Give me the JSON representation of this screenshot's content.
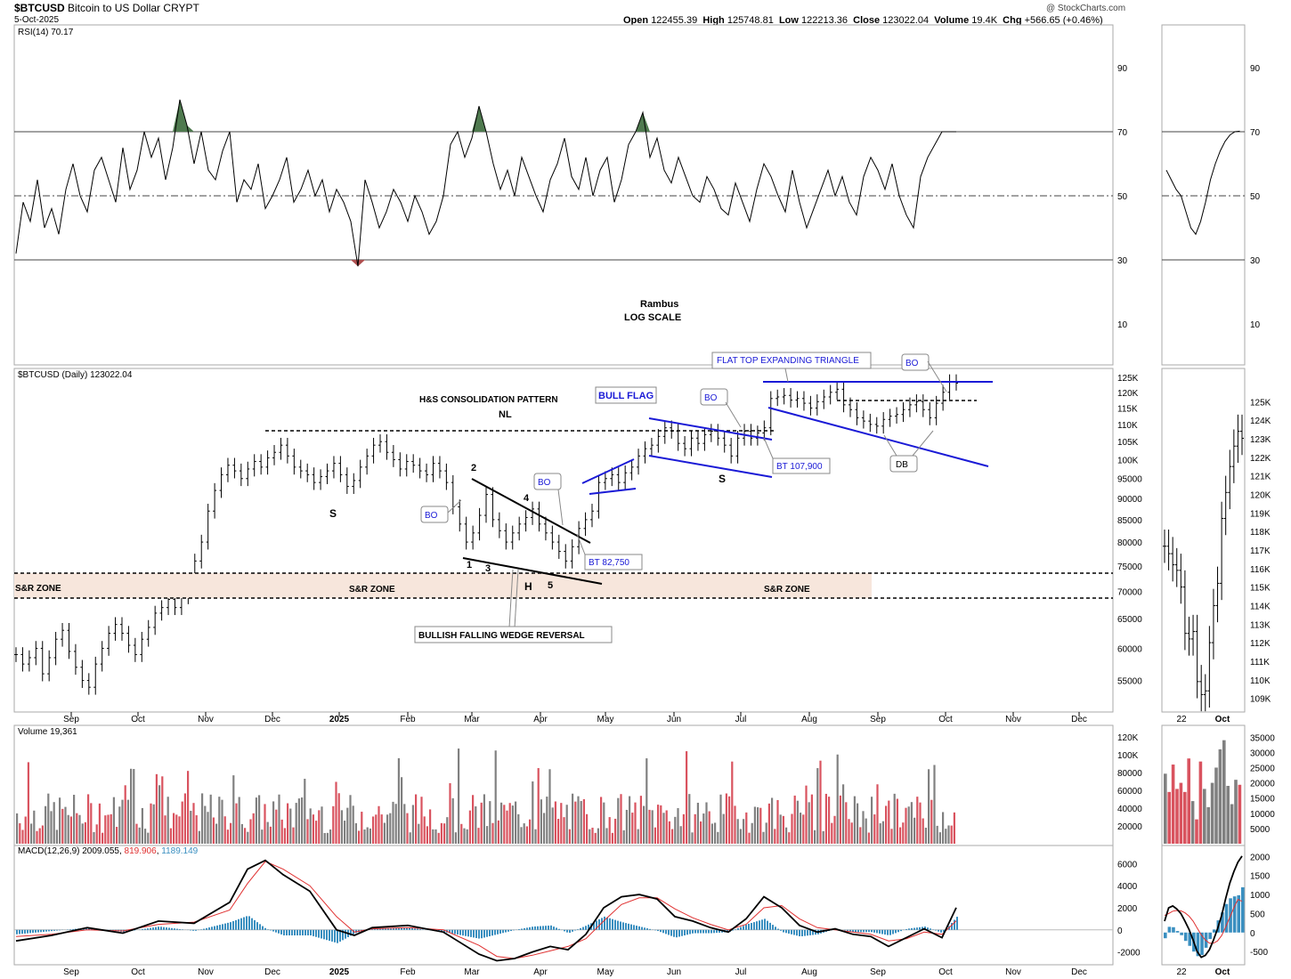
{
  "header": {
    "symbol": "$BTCUSD",
    "name": "Bitcoin to US Dollar",
    "exchange": "CRYPT",
    "date": "5-Oct-2025",
    "watermark": "@ StockCharts.com",
    "ohlc": {
      "open_label": "Open",
      "open": "122455.39",
      "high_label": "High",
      "high": "125748.81",
      "low_label": "Low",
      "low": "122213.36",
      "close_label": "Close",
      "close": "123022.04",
      "volume_label": "Volume",
      "volume": "19.4K",
      "chg_label": "Chg",
      "chg": "+566.65 (+0.46%)"
    }
  },
  "colors": {
    "up": "#000000",
    "down_volume": "#d9535f",
    "up_volume": "#808080",
    "trendline_blue": "#1a1ad6",
    "sr_zone": "#f7e6dc",
    "rsi_overbought_fill": "#4f7a4f",
    "rsi_oversold_fill": "#b05050",
    "macd_signal": "#e03030",
    "macd_hist": "#3a8fc0"
  },
  "chart_data": [
    {
      "panel": "rsi",
      "type": "line",
      "label": "RSI(14) 70.17",
      "ylim": [
        0,
        100
      ],
      "ticks": [
        "90",
        "70",
        "50",
        "30",
        "10"
      ],
      "tick_values": [
        90,
        70,
        50,
        30,
        10
      ],
      "reference_lines": [
        70,
        50,
        30
      ],
      "x": [
        0,
        8,
        16,
        24,
        32,
        40,
        48,
        56,
        64,
        72,
        80,
        88,
        96,
        104,
        112,
        120,
        128,
        136,
        144,
        152,
        160,
        168,
        176,
        184,
        192,
        200,
        208,
        216,
        224,
        232,
        240,
        248,
        256,
        264,
        272,
        280,
        288,
        296,
        304,
        312,
        320,
        328,
        336,
        344,
        352,
        360,
        368,
        376,
        384,
        392,
        400,
        408,
        416,
        424,
        432,
        440,
        448,
        456,
        464,
        472,
        480,
        488,
        496,
        504,
        512,
        520,
        528,
        536,
        544,
        552,
        560,
        568,
        576,
        584,
        592,
        600,
        608,
        616,
        624,
        632,
        640,
        648,
        656,
        664,
        672,
        680,
        688,
        696,
        704,
        712,
        720,
        728,
        736,
        744,
        752,
        760,
        768,
        776,
        784,
        792,
        800,
        808,
        816,
        824,
        832,
        840,
        848,
        856,
        864,
        872,
        880,
        888,
        896,
        904,
        912,
        920,
        928,
        936,
        944,
        952,
        960,
        968,
        976,
        984,
        992,
        1000,
        1008,
        1016,
        1024,
        1032,
        1040,
        1048,
        1056
      ],
      "values": [
        32,
        48,
        42,
        55,
        40,
        46,
        38,
        52,
        60,
        50,
        45,
        58,
        62,
        55,
        48,
        65,
        52,
        58,
        70,
        62,
        68,
        55,
        65,
        80,
        72,
        60,
        70,
        58,
        55,
        64,
        70,
        48,
        55,
        52,
        60,
        46,
        50,
        55,
        62,
        48,
        52,
        58,
        50,
        55,
        45,
        52,
        48,
        42,
        28,
        55,
        48,
        40,
        45,
        52,
        48,
        42,
        50,
        45,
        38,
        42,
        50,
        66,
        70,
        62,
        68,
        78,
        70,
        60,
        52,
        58,
        50,
        62,
        56,
        50,
        45,
        55,
        60,
        68,
        56,
        52,
        62,
        50,
        58,
        62,
        48,
        55,
        66,
        70,
        76,
        62,
        68,
        58,
        54,
        62,
        56,
        50,
        48,
        56,
        52,
        46,
        44,
        54,
        48,
        42,
        52,
        60,
        56,
        50,
        45,
        58,
        48,
        40,
        46,
        52,
        58,
        50,
        56,
        48,
        44,
        56,
        62,
        58,
        52,
        60,
        50,
        44,
        40,
        56,
        62,
        66,
        70,
        70,
        70
      ],
      "marker_last": 70.17
    },
    {
      "panel": "price",
      "type": "ohlc",
      "label": "$BTCUSD (Daily) 123022.04",
      "scale": "log",
      "ylim": [
        50500,
        128000
      ],
      "ticks": [
        "125K",
        "120K",
        "115K",
        "110K",
        "105K",
        "100K",
        "95000",
        "90000",
        "85000",
        "80000",
        "75000",
        "70000",
        "65000",
        "60000",
        "55000"
      ],
      "tick_values": [
        125000,
        120000,
        115000,
        110000,
        105000,
        100000,
        95000,
        90000,
        85000,
        80000,
        75000,
        70000,
        65000,
        60000,
        55000
      ],
      "x_ticks": [
        "Sep",
        "Oct",
        "Nov",
        "Dec",
        "2025",
        "Feb",
        "Mar",
        "Apr",
        "May",
        "Jun",
        "Jul",
        "Aug",
        "Sep",
        "Oct",
        "Nov",
        "Dec"
      ],
      "closes": [
        59000,
        57500,
        58500,
        60000,
        56000,
        58500,
        61500,
        63000,
        59500,
        57000,
        55000,
        54000,
        57500,
        60000,
        62500,
        64000,
        62500,
        60500,
        59000,
        61500,
        63500,
        66000,
        67000,
        68500,
        67000,
        69000,
        72000,
        76000,
        80000,
        87000,
        92000,
        96000,
        98500,
        97000,
        95000,
        97500,
        99500,
        98000,
        100500,
        102000,
        104000,
        101000,
        98000,
        97000,
        96000,
        94000,
        95500,
        97000,
        99000,
        96000,
        93000,
        94500,
        98000,
        101000,
        104000,
        105000,
        102000,
        100000,
        97500,
        99500,
        98500,
        97000,
        96000,
        99000,
        97000,
        94000,
        88000,
        84000,
        80000,
        82000,
        86000,
        91000,
        85000,
        82500,
        80000,
        82000,
        84000,
        85500,
        87500,
        84000,
        82000,
        80000,
        78000,
        76000,
        79000,
        83000,
        85000,
        87000,
        94000,
        95000,
        96000,
        94000,
        96500,
        98000,
        101000,
        103000,
        104000,
        106500,
        109000,
        108000,
        104500,
        103000,
        106000,
        104500,
        107000,
        108000,
        106000,
        104000,
        101000,
        106000,
        108000,
        106000,
        107500,
        109000,
        118000,
        118500,
        119000,
        117500,
        118000,
        116500,
        115000,
        117000,
        118500,
        120000,
        121000,
        116000,
        114500,
        112000,
        111000,
        110000,
        109500,
        111500,
        112500,
        113000,
        114500,
        116000,
        117000,
        114500,
        112000,
        116500,
        120000,
        123500,
        123022
      ],
      "last_close": 123022.04
    },
    {
      "panel": "volume",
      "type": "bar",
      "label": "Volume 19,361",
      "ylim": [
        0,
        130000
      ],
      "ticks": [
        "120K",
        "100K",
        "80000",
        "60000",
        "40000",
        "20000"
      ],
      "tick_values": [
        120000,
        100000,
        80000,
        60000,
        40000,
        20000
      ],
      "last_value": 19361
    },
    {
      "panel": "macd",
      "type": "line",
      "label": "MACD(12,26,9)",
      "values_text": [
        "2009.055",
        "819.906",
        "1189.149"
      ],
      "ylim": [
        -3000,
        7000
      ],
      "ticks": [
        "6000",
        "4000",
        "2000",
        "0",
        "-2000"
      ],
      "tick_values": [
        6000,
        4000,
        2000,
        0,
        -2000
      ],
      "x": [
        0,
        40,
        80,
        120,
        160,
        200,
        240,
        260,
        280,
        300,
        330,
        360,
        380,
        400,
        440,
        480,
        520,
        540,
        560,
        580,
        600,
        620,
        640,
        660,
        680,
        700,
        720,
        740,
        760,
        780,
        800,
        820,
        840,
        860,
        880,
        900,
        920,
        940,
        960,
        980,
        1000,
        1020,
        1040,
        1056
      ],
      "macd": [
        -1000,
        -500,
        200,
        -300,
        800,
        600,
        2500,
        5500,
        6300,
        5000,
        3500,
        0,
        -500,
        200,
        400,
        -200,
        -2200,
        -2800,
        -2600,
        -2000,
        -1500,
        -1800,
        -400,
        2000,
        3000,
        3200,
        2800,
        1200,
        800,
        200,
        -200,
        1000,
        3000,
        2000,
        400,
        -200,
        100,
        -400,
        -600,
        -1500,
        -700,
        100,
        -700,
        2009
      ],
      "signal": [
        -600,
        -400,
        0,
        -100,
        500,
        700,
        1800,
        4200,
        6200,
        5500,
        4000,
        1200,
        -200,
        100,
        200,
        0,
        -1400,
        -2400,
        -2600,
        -2300,
        -1900,
        -1500,
        -800,
        800,
        2300,
        2900,
        2900,
        1900,
        1100,
        500,
        0,
        500,
        2000,
        2200,
        1000,
        200,
        0,
        -200,
        -400,
        -1000,
        -800,
        -200,
        -400,
        820
      ],
      "hist_last": 1189.149
    },
    {
      "panel": "zoom_price",
      "type": "ohlc",
      "ylim": [
        108500,
        126500
      ],
      "ticks": [
        "125K",
        "124K",
        "123K",
        "122K",
        "121K",
        "120K",
        "119K",
        "118K",
        "117K",
        "116K",
        "115K",
        "114K",
        "113K",
        "112K",
        "111K",
        "110K",
        "109K"
      ],
      "tick_values": [
        125000,
        124000,
        123000,
        122000,
        121000,
        120000,
        119000,
        118000,
        117000,
        116000,
        115000,
        114000,
        113000,
        112000,
        111000,
        110000,
        109000
      ],
      "x_ticks": [
        "22",
        "Oct"
      ],
      "closes": [
        117200,
        116800,
        116200,
        115900,
        115000,
        112500,
        112200,
        112600,
        109900,
        109200,
        109400,
        112000,
        114000,
        115200,
        118700,
        120100,
        121500,
        122600,
        123400,
        123022
      ]
    },
    {
      "panel": "zoom_volume",
      "type": "bar",
      "ticks": [
        "35000",
        "30000",
        "25000",
        "20000",
        "15000",
        "10000",
        "5000"
      ],
      "tick_values": [
        35000,
        30000,
        25000,
        20000,
        15000,
        10000,
        5000
      ],
      "values": [
        23000,
        17000,
        26000,
        18000,
        20000,
        17000,
        28000,
        14000,
        8000,
        27000,
        18000,
        12000,
        20000,
        25000,
        31000,
        34000,
        19000,
        13000,
        21000,
        19361
      ]
    },
    {
      "panel": "zoom_macd",
      "type": "line",
      "ticks": [
        "2000",
        "1500",
        "1000",
        "500",
        "0",
        "-500"
      ],
      "tick_values": [
        2000,
        1500,
        1000,
        500,
        0,
        -500
      ],
      "macd": [
        300,
        650,
        700,
        620,
        500,
        300,
        80,
        -200,
        -500,
        -650,
        -600,
        -450,
        -200,
        100,
        450,
        900,
        1300,
        1600,
        1850,
        2009
      ],
      "signal": [
        450,
        500,
        560,
        580,
        570,
        520,
        430,
        300,
        120,
        -60,
        -200,
        -280,
        -280,
        -220,
        -80,
        150,
        400,
        650,
        870,
        820
      ]
    }
  ],
  "annotations": {
    "rambus": "Rambus",
    "log_scale": "LOG SCALE",
    "hs_pattern": "H&S CONSOLIDATION PATTERN",
    "nl": "NL",
    "s_left": "S",
    "h": "H",
    "s_right": "S",
    "sr_zone_left": "S&R ZONE",
    "sr_zone_mid": "S&R ZONE",
    "sr_zone_right": "S&R ZONE",
    "wedge": "BULLISH  FALLING WEDGE REVERSAL",
    "bull_flag": "BULL FLAG",
    "flat_top": "FLAT TOP EXPANDING TRIANGLE",
    "bo": "BO",
    "bt_82750": "BT 82,750",
    "bt_107900": "BT 107,900",
    "db": "DB",
    "wedge_points": [
      "1",
      "2",
      "3",
      "4",
      "5"
    ]
  }
}
